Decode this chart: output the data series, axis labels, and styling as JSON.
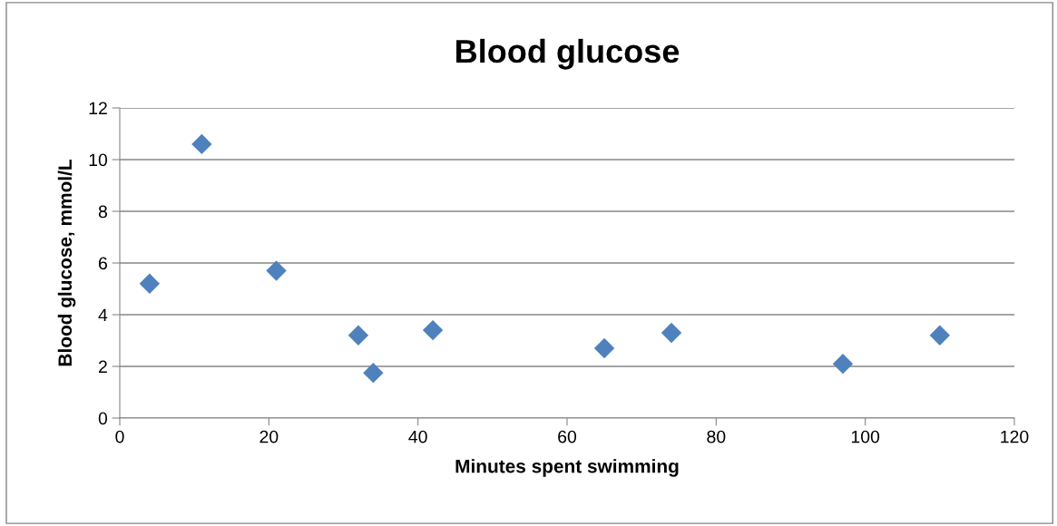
{
  "chart_data": {
    "type": "scatter",
    "title": "Blood glucose",
    "xlabel": "Minutes spent swimming",
    "ylabel": "Blood glucose, mmol/L",
    "x": [
      4,
      11,
      21,
      32,
      34,
      42,
      65,
      74,
      97,
      110
    ],
    "series": [
      {
        "color": "#4f81bd",
        "values": [
          5.2,
          10.6,
          5.7,
          3.2,
          1.75,
          3.4,
          2.7,
          3.3,
          2.1,
          3.2
        ]
      }
    ],
    "xlim": [
      0,
      120
    ],
    "xticks": [
      0,
      20,
      40,
      60,
      80,
      100,
      120
    ],
    "ylim": [
      0,
      12
    ],
    "yticks": [
      0,
      2,
      4,
      6,
      8,
      10,
      12
    ],
    "grid": "y",
    "marker": "diamond"
  }
}
